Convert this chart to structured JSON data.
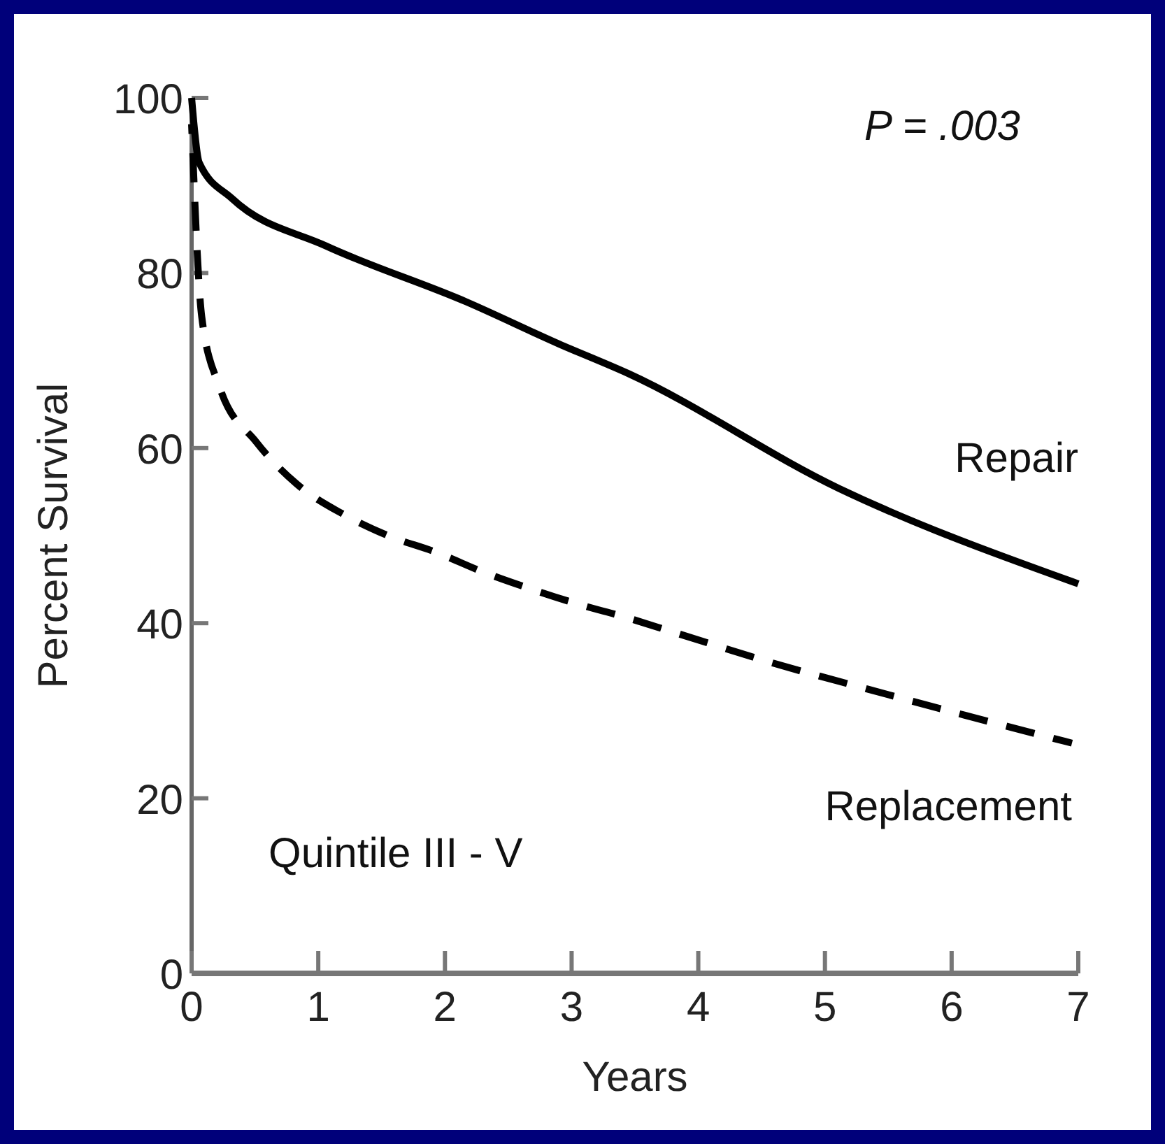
{
  "chart_data": {
    "type": "line",
    "xlabel": "Years",
    "ylabel": "Percent Survival",
    "xlim": [
      0,
      7
    ],
    "ylim": [
      0,
      100
    ],
    "xticks": [
      0,
      1,
      2,
      3,
      4,
      5,
      6,
      7
    ],
    "yticks": [
      0,
      20,
      40,
      60,
      80,
      100
    ],
    "grid": false,
    "marker": "none",
    "series": [
      {
        "name": "Repair",
        "color": "#000000",
        "line_style": "solid",
        "x": [
          0,
          0.06,
          0.32,
          1.06,
          2.17,
          2.9,
          3.45,
          5.11,
          7
        ],
        "values": [
          100,
          92.6,
          88.5,
          83.1,
          76.7,
          71.9,
          68.5,
          55.4,
          44.5
        ]
      },
      {
        "name": "Replacement",
        "color": "#000000",
        "line_style": "dashed",
        "x": [
          0,
          0.08,
          0.22,
          0.51,
          0.83,
          1.19,
          1.55,
          1.93,
          2.31,
          2.68,
          3.07,
          3.42,
          3.82,
          4.6,
          5.33,
          6.1,
          6.95
        ],
        "values": [
          97,
          75,
          67,
          60.7,
          55.9,
          52.5,
          50,
          48.1,
          45.8,
          43.9,
          42.1,
          40.7,
          38.9,
          35.4,
          32.5,
          29.5,
          26.3
        ]
      }
    ],
    "annotations": [
      "P = .003",
      "Quintile III - V"
    ]
  }
}
